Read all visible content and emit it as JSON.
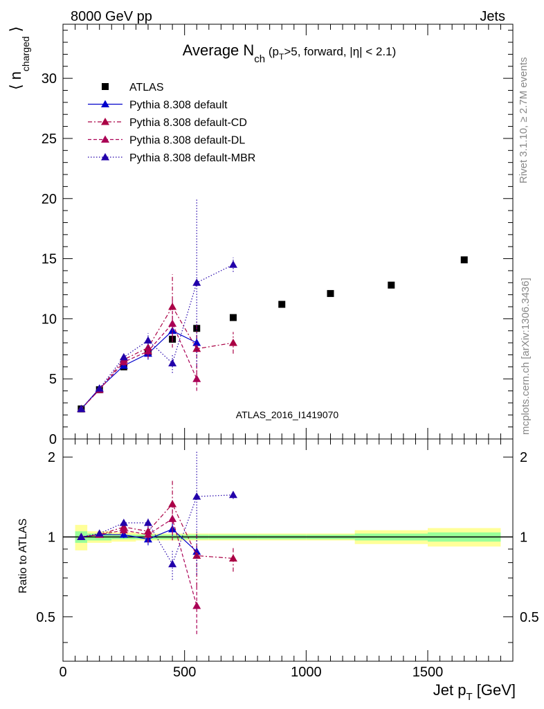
{
  "header": {
    "energy": "8000 GeV pp",
    "process": "Jets"
  },
  "side_labels": {
    "rivet": "Rivet 3.1.10, ≥ 2.7M events",
    "mcplots": "mcplots.cern.ch [arXiv:1306.3436]"
  },
  "analysis_id": "ATLAS_2016_I1419070",
  "colors": {
    "data": "#000000",
    "default": "#0000cc",
    "cd": "#aa0044",
    "dl": "#aa0055",
    "mbr": "#2200aa",
    "band_green": "#99ff99",
    "band_yellow": "#ffff99"
  },
  "chart_data": [
    {
      "type": "scatter",
      "title": "Average N_ch (p_T>5, forward, |η| < 2.1)",
      "xlabel": "Jet p_T [GeV]",
      "ylabel": "⟨ n_charged ⟩",
      "xlim": [
        0,
        1850
      ],
      "ylim": [
        0,
        34.5
      ],
      "yticks": [
        0,
        5,
        10,
        15,
        20,
        25,
        30
      ],
      "legend_position": "top-left",
      "series": [
        {
          "name": "ATLAS",
          "style": "data",
          "x": [
            75,
            150,
            250,
            350,
            450,
            550,
            700,
            900,
            1100,
            1350,
            1650
          ],
          "y": [
            2.5,
            4.1,
            6.0,
            7.2,
            8.3,
            9.2,
            10.1,
            11.2,
            12.1,
            12.8,
            14.9
          ]
        },
        {
          "name": "Pythia 8.308 default",
          "style": "solid",
          "colorKey": "default",
          "x": [
            75,
            150,
            250,
            350,
            450,
            550
          ],
          "y": [
            2.5,
            4.2,
            6.1,
            7.1,
            9.0,
            8.0
          ],
          "err": [
            0.1,
            0.1,
            0.2,
            0.5,
            0.8,
            0.6
          ]
        },
        {
          "name": "Pythia 8.308 default-CD",
          "style": "dashdot",
          "colorKey": "cd",
          "x": [
            75,
            150,
            250,
            350,
            450,
            550,
            700
          ],
          "y": [
            2.5,
            4.1,
            6.6,
            7.6,
            11.0,
            7.5,
            8.0
          ],
          "err": [
            0.1,
            0.1,
            0.3,
            0.6,
            2.7,
            2.4,
            0.9
          ]
        },
        {
          "name": "Pythia 8.308 default-DL",
          "style": "dashed",
          "colorKey": "dl",
          "x": [
            75,
            150,
            250,
            350,
            450,
            550
          ],
          "y": [
            2.5,
            4.1,
            6.4,
            7.3,
            9.6,
            5.0
          ],
          "err": [
            0.1,
            0.1,
            0.3,
            0.6,
            2.0,
            1.0
          ]
        },
        {
          "name": "Pythia 8.308 default-MBR",
          "style": "dotted",
          "colorKey": "mbr",
          "x": [
            75,
            150,
            250,
            350,
            450,
            550,
            700
          ],
          "y": [
            2.5,
            4.2,
            6.8,
            8.2,
            6.3,
            13.0,
            14.5
          ],
          "err": [
            0.1,
            0.1,
            0.2,
            0.6,
            0.8,
            7.0,
            0.6
          ]
        }
      ]
    },
    {
      "type": "scatter",
      "xlabel": "Jet p_T [GeV]",
      "ylabel": "Ratio to ATLAS",
      "xlim": [
        0,
        1850
      ],
      "ylim": [
        0.34,
        2.34
      ],
      "yticks": [
        0.5,
        1,
        2
      ],
      "xticks": [
        0,
        500,
        1000,
        1500
      ],
      "reference_line": 1,
      "uncertainty_bands": {
        "bins": [
          [
            50,
            100
          ],
          [
            100,
            200
          ],
          [
            200,
            300
          ],
          [
            300,
            400
          ],
          [
            400,
            500
          ],
          [
            500,
            600
          ],
          [
            600,
            800
          ],
          [
            800,
            1000
          ],
          [
            1000,
            1200
          ],
          [
            1200,
            1500
          ],
          [
            1500,
            1800
          ]
        ],
        "inner": [
          0.05,
          0.03,
          0.02,
          0.02,
          0.02,
          0.02,
          0.02,
          0.02,
          0.02,
          0.03,
          0.04
        ],
        "outer": [
          0.11,
          0.05,
          0.04,
          0.03,
          0.03,
          0.03,
          0.03,
          0.03,
          0.03,
          0.06,
          0.08
        ]
      },
      "series": [
        {
          "name": "Pythia 8.308 default",
          "style": "solid",
          "colorKey": "default",
          "x": [
            75,
            150,
            250,
            350,
            450,
            550
          ],
          "y": [
            1.0,
            1.02,
            1.02,
            0.98,
            1.07,
            0.88
          ],
          "err": [
            0.02,
            0.02,
            0.03,
            0.05,
            0.06,
            0.04
          ]
        },
        {
          "name": "Pythia 8.308 default-CD",
          "style": "dashdot",
          "colorKey": "cd",
          "x": [
            75,
            150,
            250,
            350,
            450,
            550,
            700
          ],
          "y": [
            1.0,
            1.02,
            1.09,
            1.05,
            1.33,
            0.85,
            0.83
          ],
          "err": [
            0.02,
            0.02,
            0.04,
            0.07,
            0.3,
            0.2,
            0.09
          ]
        },
        {
          "name": "Pythia 8.308 default-DL",
          "style": "dashed",
          "colorKey": "dl",
          "x": [
            75,
            150,
            250,
            350,
            450,
            550
          ],
          "y": [
            1.0,
            1.02,
            1.06,
            1.02,
            1.17,
            0.55
          ],
          "err": [
            0.02,
            0.02,
            0.04,
            0.07,
            0.2,
            0.12
          ]
        },
        {
          "name": "Pythia 8.308 default-MBR",
          "style": "dotted",
          "colorKey": "mbr",
          "x": [
            75,
            150,
            250,
            350,
            450,
            550,
            700
          ],
          "y": [
            1.0,
            1.03,
            1.13,
            1.13,
            0.79,
            1.42,
            1.44
          ],
          "err": [
            0.02,
            0.02,
            0.03,
            0.05,
            0.1,
            0.7,
            0.05
          ]
        }
      ]
    }
  ]
}
